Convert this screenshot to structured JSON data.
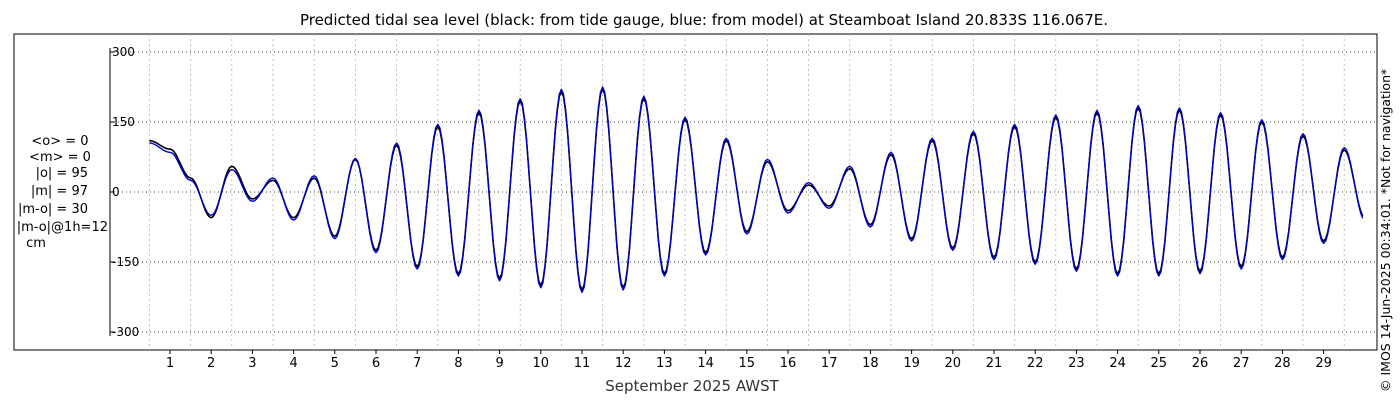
{
  "chart_data": {
    "type": "line",
    "title": "Predicted tidal sea level (black: from tide gauge, blue: from model) at Steamboat Island 20.833S 116.067E.",
    "xlabel": "September 2025 AWST",
    "ylabel": "",
    "xlim": [
      0.3,
      30.0
    ],
    "ylim": [
      -330,
      330
    ],
    "x_ticks": [
      "1",
      "2",
      "3",
      "4",
      "5",
      "6",
      "7",
      "8",
      "9",
      "10",
      "11",
      "12",
      "13",
      "14",
      "15",
      "16",
      "17",
      "18",
      "19",
      "20",
      "21",
      "22",
      "23",
      "24",
      "25",
      "26",
      "27",
      "28",
      "29"
    ],
    "y_ticks": [
      "300",
      "150",
      "0",
      "-150",
      "-300"
    ],
    "y_tick_values": [
      300,
      150,
      0,
      -150,
      -300
    ],
    "grid": true,
    "series": [
      {
        "name": "tide gauge",
        "color": "#000000",
        "x": [
          0.5,
          1,
          1.5,
          2,
          2.5,
          3,
          3.5,
          4,
          4.5,
          5,
          5.5,
          6,
          6.5,
          7,
          7.5,
          8,
          8.5,
          9,
          9.5,
          10,
          10.5,
          11,
          11.5,
          12,
          12.5,
          13,
          13.5,
          14,
          14.5,
          15,
          15.5,
          16,
          16.5,
          17,
          17.5,
          18,
          18.5,
          19,
          19.5,
          20,
          20.5,
          21,
          21.5,
          22,
          22.5,
          23,
          23.5,
          24,
          24.5,
          25,
          25.5,
          26,
          26.5,
          27,
          27.5,
          28,
          28.5,
          29,
          29.5,
          30
        ],
        "y": [
          110,
          92,
          30,
          -55,
          55,
          -15,
          25,
          -55,
          30,
          -95,
          70,
          -125,
          100,
          -160,
          140,
          -175,
          170,
          -185,
          195,
          -200,
          215,
          -210,
          220,
          -205,
          200,
          -175,
          155,
          -130,
          110,
          -85,
          65,
          -40,
          15,
          -30,
          50,
          -70,
          80,
          -100,
          110,
          -120,
          125,
          -140,
          140,
          -150,
          160,
          -165,
          170,
          -175,
          180,
          -175,
          175,
          -170,
          165,
          -160,
          150,
          -140,
          120,
          -105,
          90,
          -55
        ]
      },
      {
        "name": "model",
        "color": "#0000cc",
        "x": [
          0.5,
          1,
          1.5,
          2,
          2.5,
          3,
          3.5,
          4,
          4.5,
          5,
          5.5,
          6,
          6.5,
          7,
          7.5,
          8,
          8.5,
          9,
          9.5,
          10,
          10.5,
          11,
          11.5,
          12,
          12.5,
          13,
          13.5,
          14,
          14.5,
          15,
          15.5,
          16,
          16.5,
          17,
          17.5,
          18,
          18.5,
          19,
          19.5,
          20,
          20.5,
          21,
          21.5,
          22,
          22.5,
          23,
          23.5,
          24,
          24.5,
          25,
          25.5,
          26,
          26.5,
          27,
          27.5,
          28,
          28.5,
          29,
          29.5,
          30
        ],
        "y": [
          105,
          85,
          25,
          -50,
          48,
          -20,
          30,
          -60,
          35,
          -100,
          72,
          -130,
          105,
          -165,
          145,
          -180,
          175,
          -190,
          200,
          -205,
          220,
          -215,
          225,
          -210,
          205,
          -180,
          160,
          -135,
          115,
          -90,
          70,
          -45,
          20,
          -35,
          55,
          -75,
          85,
          -105,
          115,
          -125,
          130,
          -145,
          145,
          -155,
          165,
          -170,
          175,
          -180,
          185,
          -180,
          180,
          -175,
          170,
          -165,
          155,
          -145,
          125,
          -110,
          95,
          -60
        ]
      }
    ]
  },
  "stats": {
    "mean_obs": "<o> = 0",
    "mean_model": "<m> = 0",
    "abs_obs": "|o| = 95",
    "abs_model": "|m| = 97",
    "abs_diff": "|m-o| = 30",
    "abs_diff_1h": "|m-o|@1h=12",
    "unit": "cm"
  },
  "credit": "© IMOS 14-Jun-2025 00:34:01. *Not for navigation*"
}
